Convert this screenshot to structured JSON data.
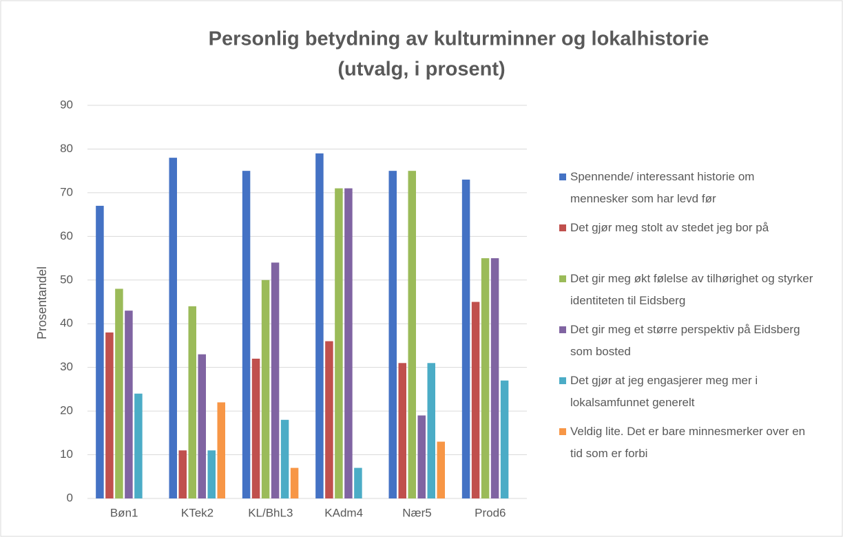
{
  "chart_data": {
    "type": "bar",
    "title": "Personlig betydning av kulturminner og lokalhistorie",
    "subtitle": "(utvalg, i prosent)",
    "y_label": "Prosentandel",
    "categories": [
      "Bøn1",
      "KTek2",
      "KL/BhL3",
      "KAdm4",
      "Nær5",
      "Prod6"
    ],
    "series": [
      {
        "name": "Spennende/ interessant historie om mennesker som har levd før",
        "color": "#4472c4",
        "values": [
          67,
          78,
          75,
          79,
          75,
          73
        ]
      },
      {
        "name": "Det gjør meg stolt av stedet jeg bor på",
        "color": "#c0504d",
        "values": [
          38,
          11,
          32,
          36,
          31,
          45
        ]
      },
      {
        "name": "Det gir meg økt følelse av tilhørighet og styrker identiteten til Eidsberg",
        "color": "#9bbb59",
        "values": [
          48,
          44,
          50,
          71,
          75,
          55
        ]
      },
      {
        "name": "Det gir meg et større perspektiv på Eidsberg som bosted",
        "color": "#8064a2",
        "values": [
          43,
          33,
          54,
          71,
          19,
          55
        ]
      },
      {
        "name": "Det gjør at jeg engasjerer meg mer i lokalsamfunnet generelt",
        "color": "#4bacc6",
        "values": [
          24,
          11,
          18,
          7,
          31,
          27
        ]
      },
      {
        "name": "Veldig lite. Det er bare minnesmerker over en tid som er forbi",
        "color": "#f79646",
        "values": [
          null,
          22,
          7,
          null,
          13,
          null
        ]
      }
    ],
    "ylim": [
      0,
      90
    ],
    "yticks": [
      0,
      10,
      20,
      30,
      40,
      50,
      60,
      70,
      80,
      90
    ],
    "grid": true,
    "legend": "right"
  }
}
